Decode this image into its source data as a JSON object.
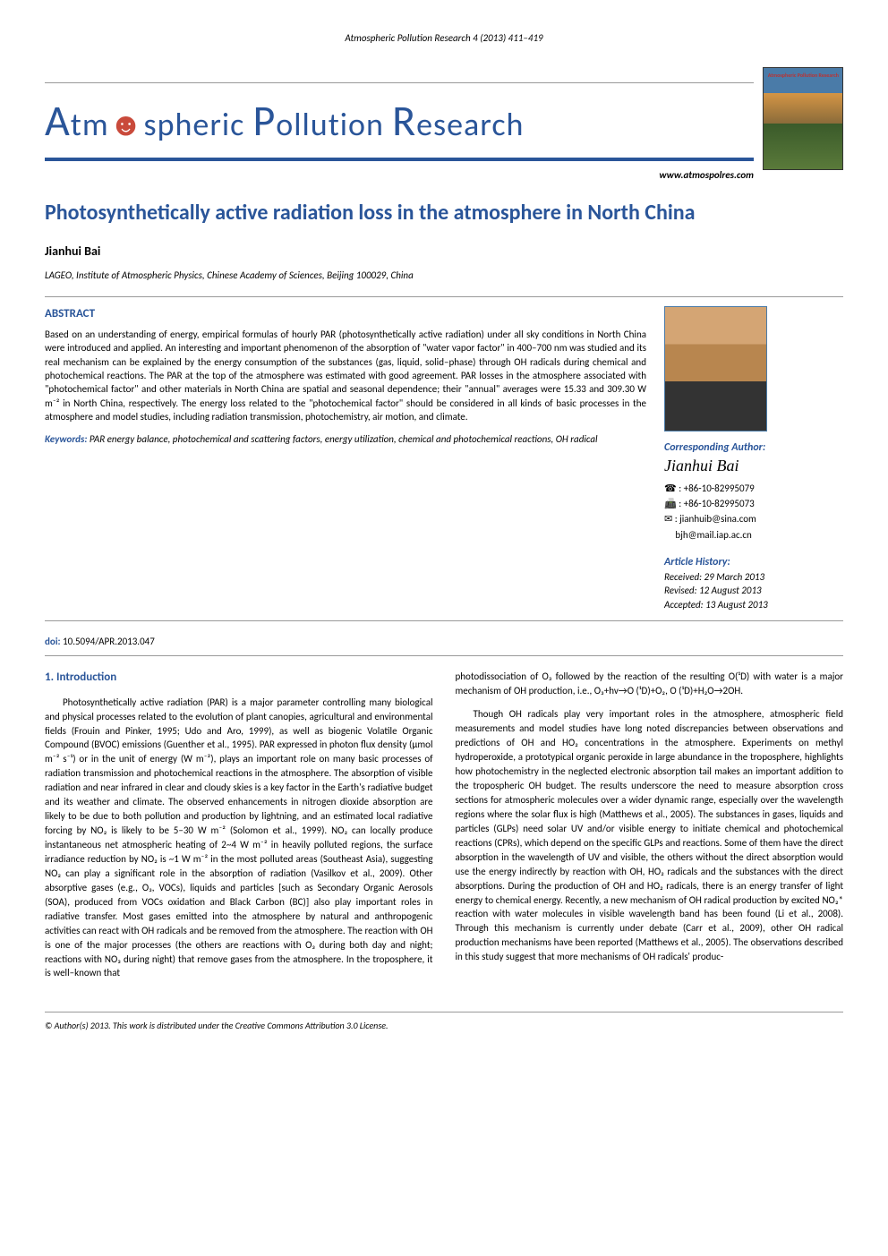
{
  "header": {
    "running": "Atmospheric Pollution Research 4 (2013) 411–419",
    "journal_a": "A",
    "journal_tm": "tm",
    "journal_spheric": "spheric ",
    "journal_p": "P",
    "journal_ollution": "ollution ",
    "journal_r": "R",
    "journal_esearch": "esearch",
    "cover_label": "Atmospheric Pollution Research",
    "website": "www.atmospolres.com"
  },
  "paper": {
    "title": "Photosynthetically active radiation loss in the atmosphere in North China",
    "author": "Jianhui Bai",
    "affiliation": "LAGEO, Institute of Atmospheric Physics, Chinese Academy of Sciences, Beijing 100029, China"
  },
  "abstract": {
    "heading": "ABSTRACT",
    "text": "Based on an understanding of energy, empirical formulas of hourly PAR (photosynthetically active radiation) under all sky conditions in North China were introduced and applied. An interesting and important phenomenon of the absorption of \"water vapor factor\" in 400–700 nm was studied and its real mechanism can be explained by the energy consumption of the substances (gas, liquid, solid–phase) through OH radicals during chemical and photochemical reactions. The PAR at the top of the atmosphere was estimated with good agreement. PAR losses in the atmosphere associated with \"photochemical factor\" and other materials in North China are spatial and seasonal dependence; their \"annual\" averages were 15.33 and 309.30 W m⁻² in North China, respectively. The energy loss related to the \"photochemical factor\" should be considered in all kinds of basic processes in the atmosphere and model studies, including radiation transmission, photochemistry, air motion, and climate.",
    "keywords_label": "Keywords: ",
    "keywords": "PAR energy balance, photochemical and scattering factors, energy utilization, chemical and photochemical reactions, OH radical"
  },
  "corresponding": {
    "label": "Corresponding Author:",
    "name": "Jianhui Bai",
    "phone_icon": "☎",
    "phone": " : +86-10-82995079",
    "fax_icon": "📠",
    "fax": " : +86-10-82995073",
    "email_icon": "✉",
    "email": " : jianhuib@sina.com",
    "email2": "     bjh@mail.iap.ac.cn"
  },
  "history": {
    "label": "Article History:",
    "received": "Received: 29 March 2013",
    "revised": "Revised: 12 August 2013",
    "accepted": "Accepted: 13 August 2013"
  },
  "doi": {
    "label": "doi: ",
    "value": "10.5094/APR.2013.047"
  },
  "intro": {
    "heading": "1. Introduction",
    "p1": "Photosynthetically active radiation (PAR) is a major parameter controlling many biological and physical processes related to the evolution of plant canopies, agricultural and environmental fields (Frouin and Pinker, 1995; Udo and Aro, 1999), as well as biogenic Volatile Organic Compound (BVOC) emissions (Guenther et al., 1995). PAR expressed in photon flux density (µmol m⁻² s⁻¹) or in the unit of energy (W m⁻²), plays an important role on many basic processes of radiation transmission and photochemical reactions in the atmosphere. The absorption of visible radiation and near infrared in clear and cloudy skies is a key factor in the Earth's radiative budget and its weather and climate. The observed enhancements in nitrogen dioxide absorption are likely to be due to both pollution and production by lightning, and an estimated local radiative forcing by NO₂ is likely to be 5–30 W m⁻² (Solomon et al., 1999). NO₂ can locally produce instantaneous net atmospheric heating of 2~4 W m⁻² in heavily polluted regions, the surface irradiance reduction by NO₂ is ~1 W m⁻² in the most polluted areas (Southeast Asia), suggesting NO₂ can play a significant role in the absorption of radiation (Vasilkov et al., 2009). Other absorptive gases (e.g., O₃, VOCs), liquids and particles [such as Secondary Organic Aerosols (SOA), produced from VOCs oxidation and Black Carbon (BC)] also play important roles in radiative transfer. Most gases emitted into the atmosphere by natural and anthropogenic activities can react with OH radicals and be removed from the atmosphere. The reaction with OH is one of the major processes (the others are reactions with O₃ during both day and night; reactions with NO₃ during night) that remove gases from the atmosphere. In the troposphere, it is well–known that",
    "p2_start": "photodissociation of O₃ followed by the reaction of the resulting O(¹D) with water is a major mechanism of OH production, i.e., O₃+hv→O (¹D)+O₂, O (¹D)+H₂O→2OH.",
    "p3": "Though OH radicals play very important roles in the atmosphere, atmospheric field measurements and model studies have long noted discrepancies between observations and predictions of OH and HO₂ concentrations in the atmosphere. Experiments on methyl hydroperoxide, a prototypical organic peroxide in large abundance in the troposphere, highlights how photochemistry in the neglected electronic absorption tail makes an important addition to the tropospheric OH budget. The results underscore the need to measure absorption cross sections for atmospheric molecules over a wider dynamic range, especially over the wavelength regions where the solar flux is high (Matthews et al., 2005). The substances in gases, liquids and particles (GLPs) need solar UV and/or visible energy to initiate chemical and photochemical reactions (CPRs), which depend on the specific GLPs and reactions. Some of them have the direct absorption in the wavelength of UV and visible, the others without the direct absorption would use the energy indirectly by reaction with OH, HO₂ radicals and the substances with the direct absorptions. During the production of OH and HO₂ radicals, there is an energy transfer of light energy to chemical energy. Recently, a new mechanism of OH radical production by excited NO₂* reaction with water molecules in visible wavelength band has been found (Li et al., 2008). Through this mechanism is currently under debate (Carr et al., 2009), other OH radical production mechanisms have been reported (Matthews et al., 2005). The observations described in this study suggest that more mechanisms of OH radicals' produc-"
  },
  "footer": "© Author(s) 2013. This work is distributed under the Creative Commons Attribution 3.0 License.",
  "colors": {
    "primary": "#2a5599",
    "accent": "#c94a3b"
  }
}
